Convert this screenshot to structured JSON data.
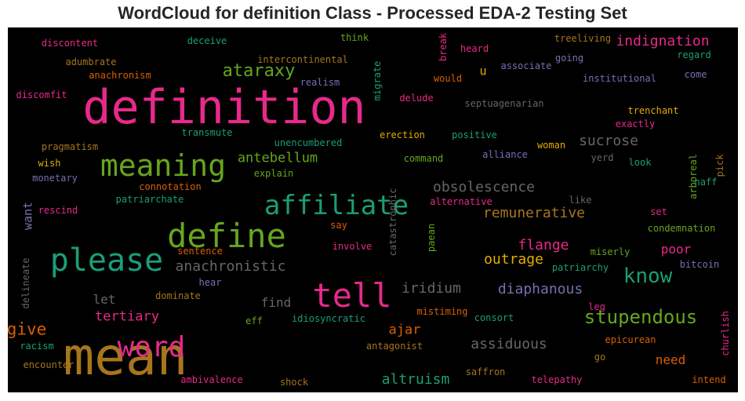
{
  "title": "WordCloud for definition Class - Processed EDA-2 Testing Set",
  "palette": {
    "pink": "#e7298a",
    "green": "#66a61e",
    "teal": "#1b9e77",
    "gold": "#a6761d",
    "orange": "#d95f02",
    "purple": "#7570b3",
    "yellow": "#e6ab02",
    "gray": "#666666"
  },
  "chart_data": {
    "type": "wordcloud",
    "title": "WordCloud for definition Class - Processed EDA-2 Testing Set",
    "background": "#000000",
    "words": [
      {
        "text": "mean",
        "weight": 100,
        "color": "#a6761d"
      },
      {
        "text": "definition",
        "weight": 90,
        "color": "#e7298a"
      },
      {
        "text": "define",
        "weight": 64,
        "color": "#66a61e"
      },
      {
        "text": "please",
        "weight": 62,
        "color": "#1b9e77"
      },
      {
        "text": "tell",
        "weight": 62,
        "color": "#e7298a"
      },
      {
        "text": "meaning",
        "weight": 56,
        "color": "#66a61e"
      },
      {
        "text": "word",
        "weight": 55,
        "color": "#e7298a"
      },
      {
        "text": "affiliate",
        "weight": 52,
        "color": "#1b9e77"
      },
      {
        "text": "know",
        "weight": 40,
        "color": "#1b9e77"
      },
      {
        "text": "stupendous",
        "weight": 36,
        "color": "#66a61e"
      },
      {
        "text": "ataraxy",
        "weight": 33,
        "color": "#66a61e"
      },
      {
        "text": "give",
        "weight": 31,
        "color": "#d95f02"
      },
      {
        "text": "obsolescence",
        "weight": 27,
        "color": "#666666"
      },
      {
        "text": "indignation",
        "weight": 27,
        "color": "#e7298a"
      },
      {
        "text": "anachronistic",
        "weight": 27,
        "color": "#666666"
      },
      {
        "text": "remunerative",
        "weight": 27,
        "color": "#a6761d"
      },
      {
        "text": "flange",
        "weight": 27,
        "color": "#e7298a"
      },
      {
        "text": "outrage",
        "weight": 27,
        "color": "#e6ab02"
      },
      {
        "text": "sucrose",
        "weight": 27,
        "color": "#666666"
      },
      {
        "text": "iridium",
        "weight": 27,
        "color": "#666666"
      },
      {
        "text": "diaphanous",
        "weight": 27,
        "color": "#7570b3"
      },
      {
        "text": "assiduous",
        "weight": 27,
        "color": "#666666"
      },
      {
        "text": "altruism",
        "weight": 27,
        "color": "#1b9e77"
      },
      {
        "text": "antebellum",
        "weight": 25,
        "color": "#66a61e"
      },
      {
        "text": "tertiary",
        "weight": 25,
        "color": "#e7298a"
      },
      {
        "text": "ajar",
        "weight": 25,
        "color": "#d95f02"
      },
      {
        "text": "need",
        "weight": 24,
        "color": "#d95f02"
      },
      {
        "text": "poor",
        "weight": 24,
        "color": "#e7298a"
      },
      {
        "text": "find",
        "weight": 24,
        "color": "#666666"
      },
      {
        "text": "let",
        "weight": 24,
        "color": "#666666"
      },
      {
        "text": "want",
        "weight": 22,
        "color": "#7570b3"
      },
      {
        "text": "u",
        "weight": 22,
        "color": "#e6ab02"
      },
      {
        "text": "discontent",
        "weight": 18,
        "color": "#e7298a"
      },
      {
        "text": "deceive",
        "weight": 18,
        "color": "#1b9e77"
      },
      {
        "text": "think",
        "weight": 18,
        "color": "#66a61e"
      },
      {
        "text": "break",
        "weight": 18,
        "color": "#e7298a"
      },
      {
        "text": "heard",
        "weight": 18,
        "color": "#e7298a"
      },
      {
        "text": "treeliving",
        "weight": 18,
        "color": "#a6761d"
      },
      {
        "text": "adumbrate",
        "weight": 18,
        "color": "#a6761d"
      },
      {
        "text": "intercontinental",
        "weight": 18,
        "color": "#a6761d"
      },
      {
        "text": "migrate",
        "weight": 18,
        "color": "#1b9e77"
      },
      {
        "text": "going",
        "weight": 18,
        "color": "#7570b3"
      },
      {
        "text": "regard",
        "weight": 18,
        "color": "#1b9e77"
      },
      {
        "text": "anachronism",
        "weight": 18,
        "color": "#d95f02"
      },
      {
        "text": "would",
        "weight": 18,
        "color": "#d95f02"
      },
      {
        "text": "associate",
        "weight": 18,
        "color": "#7570b3"
      },
      {
        "text": "institutional",
        "weight": 18,
        "color": "#7570b3"
      },
      {
        "text": "come",
        "weight": 18,
        "color": "#7570b3"
      },
      {
        "text": "realism",
        "weight": 18,
        "color": "#7570b3"
      },
      {
        "text": "discomfit",
        "weight": 18,
        "color": "#e7298a"
      },
      {
        "text": "delude",
        "weight": 18,
        "color": "#e7298a"
      },
      {
        "text": "septuagenarian",
        "weight": 18,
        "color": "#666666"
      },
      {
        "text": "trenchant",
        "weight": 18,
        "color": "#e6ab02"
      },
      {
        "text": "exactly",
        "weight": 18,
        "color": "#e7298a"
      },
      {
        "text": "transmute",
        "weight": 18,
        "color": "#1b9e77"
      },
      {
        "text": "erection",
        "weight": 18,
        "color": "#e6ab02"
      },
      {
        "text": "positive",
        "weight": 18,
        "color": "#1b9e77"
      },
      {
        "text": "pragmatism",
        "weight": 18,
        "color": "#a6761d"
      },
      {
        "text": "unencumbered",
        "weight": 18,
        "color": "#1b9e77"
      },
      {
        "text": "woman",
        "weight": 18,
        "color": "#e6ab02"
      },
      {
        "text": "alliance",
        "weight": 18,
        "color": "#7570b3"
      },
      {
        "text": "wish",
        "weight": 18,
        "color": "#e6ab02"
      },
      {
        "text": "command",
        "weight": 18,
        "color": "#66a61e"
      },
      {
        "text": "yerd",
        "weight": 18,
        "color": "#666666"
      },
      {
        "text": "look",
        "weight": 18,
        "color": "#1b9e77"
      },
      {
        "text": "pick",
        "weight": 18,
        "color": "#a6761d"
      },
      {
        "text": "monetary",
        "weight": 18,
        "color": "#7570b3"
      },
      {
        "text": "explain",
        "weight": 18,
        "color": "#66a61e"
      },
      {
        "text": "arboreal",
        "weight": 18,
        "color": "#66a61e"
      },
      {
        "text": "naff",
        "weight": 18,
        "color": "#1b9e77"
      },
      {
        "text": "connotation",
        "weight": 18,
        "color": "#d95f02"
      },
      {
        "text": "catastrophic",
        "weight": 18,
        "color": "#666666"
      },
      {
        "text": "rescind",
        "weight": 18,
        "color": "#e7298a"
      },
      {
        "text": "patriarchate",
        "weight": 18,
        "color": "#1b9e77"
      },
      {
        "text": "alternative",
        "weight": 18,
        "color": "#e7298a"
      },
      {
        "text": "like",
        "weight": 18,
        "color": "#666666"
      },
      {
        "text": "set",
        "weight": 18,
        "color": "#e7298a"
      },
      {
        "text": "say",
        "weight": 18,
        "color": "#d95f02"
      },
      {
        "text": "condemnation",
        "weight": 18,
        "color": "#66a61e"
      },
      {
        "text": "sentence",
        "weight": 18,
        "color": "#d95f02"
      },
      {
        "text": "involve",
        "weight": 18,
        "color": "#e7298a"
      },
      {
        "text": "paean",
        "weight": 18,
        "color": "#66a61e"
      },
      {
        "text": "delineate",
        "weight": 18,
        "color": "#666666"
      },
      {
        "text": "miserly",
        "weight": 18,
        "color": "#66a61e"
      },
      {
        "text": "bitcoin",
        "weight": 18,
        "color": "#7570b3"
      },
      {
        "text": "patriarchy",
        "weight": 18,
        "color": "#1b9e77"
      },
      {
        "text": "hear",
        "weight": 18,
        "color": "#7570b3"
      },
      {
        "text": "dominate",
        "weight": 18,
        "color": "#a6761d"
      },
      {
        "text": "leg",
        "weight": 18,
        "color": "#e7298a"
      },
      {
        "text": "eff",
        "weight": 18,
        "color": "#66a61e"
      },
      {
        "text": "idiosyncratic",
        "weight": 18,
        "color": "#1b9e77"
      },
      {
        "text": "mistiming",
        "weight": 18,
        "color": "#d95f02"
      },
      {
        "text": "consort",
        "weight": 18,
        "color": "#1b9e77"
      },
      {
        "text": "churlish",
        "weight": 18,
        "color": "#e7298a"
      },
      {
        "text": "racism",
        "weight": 18,
        "color": "#1b9e77"
      },
      {
        "text": "antagonist",
        "weight": 18,
        "color": "#a6761d"
      },
      {
        "text": "epicurean",
        "weight": 18,
        "color": "#d95f02"
      },
      {
        "text": "encounter",
        "weight": 18,
        "color": "#a6761d"
      },
      {
        "text": "go",
        "weight": 18,
        "color": "#a6761d"
      },
      {
        "text": "ambivalence",
        "weight": 18,
        "color": "#e7298a"
      },
      {
        "text": "shock",
        "weight": 18,
        "color": "#a6761d"
      },
      {
        "text": "saffron",
        "weight": 18,
        "color": "#a6761d"
      },
      {
        "text": "telepathy",
        "weight": 18,
        "color": "#e7298a"
      },
      {
        "text": "intend",
        "weight": 18,
        "color": "#d95f02"
      }
    ]
  }
}
